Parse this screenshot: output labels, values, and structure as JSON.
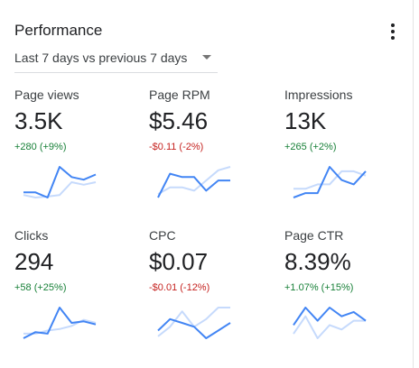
{
  "card": {
    "title": "Performance",
    "date_range": "Last 7 days vs previous 7 days"
  },
  "colors": {
    "positive": "#188038",
    "negative": "#c5221f",
    "current_line": "#4285f4",
    "previous_line": "#c6dafc"
  },
  "icons": {
    "menu": "more-vert-icon",
    "dropdown": "caret-down-icon"
  },
  "metrics": [
    {
      "label": "Page views",
      "value": "3.5K",
      "delta": "+280 (+9%)",
      "trend": "up",
      "current": [
        4,
        4,
        3,
        9,
        7,
        6.5,
        7.5
      ],
      "previous": [
        3.5,
        3,
        3.2,
        3.5,
        6,
        5.5,
        6
      ]
    },
    {
      "label": "Page RPM",
      "value": "$5.46",
      "delta": "-$0.11 (-2%)",
      "trend": "down",
      "current": [
        1,
        8,
        7,
        7,
        3,
        6,
        6
      ],
      "previous": [
        2,
        4,
        4,
        3,
        6,
        9,
        10
      ]
    },
    {
      "label": "Impressions",
      "value": "13K",
      "delta": "+265 (+2%)",
      "trend": "up",
      "current": [
        3,
        4,
        4,
        10,
        7,
        6,
        9
      ],
      "previous": [
        5,
        5,
        6,
        6,
        9,
        9,
        8
      ]
    },
    {
      "label": "Clicks",
      "value": "294",
      "delta": "+58 (+25%)",
      "trend": "up",
      "current": [
        0,
        2,
        1.5,
        10,
        5,
        5.5,
        4.5
      ],
      "previous": [
        1.5,
        1.5,
        2.5,
        3,
        4,
        6,
        5
      ]
    },
    {
      "label": "CPC",
      "value": "$0.07",
      "delta": "-$0.01 (-12%)",
      "trend": "down",
      "current": [
        3,
        6,
        5,
        4,
        1,
        3,
        5
      ],
      "previous": [
        1.5,
        4,
        8,
        4,
        6,
        9,
        9
      ]
    },
    {
      "label": "Page CTR",
      "value": "8.39%",
      "delta": "+1.07% (+15%)",
      "trend": "up",
      "current": [
        5,
        9,
        6,
        9,
        7,
        8,
        6
      ],
      "previous": [
        3,
        7,
        2,
        5,
        4,
        6,
        6
      ]
    }
  ]
}
